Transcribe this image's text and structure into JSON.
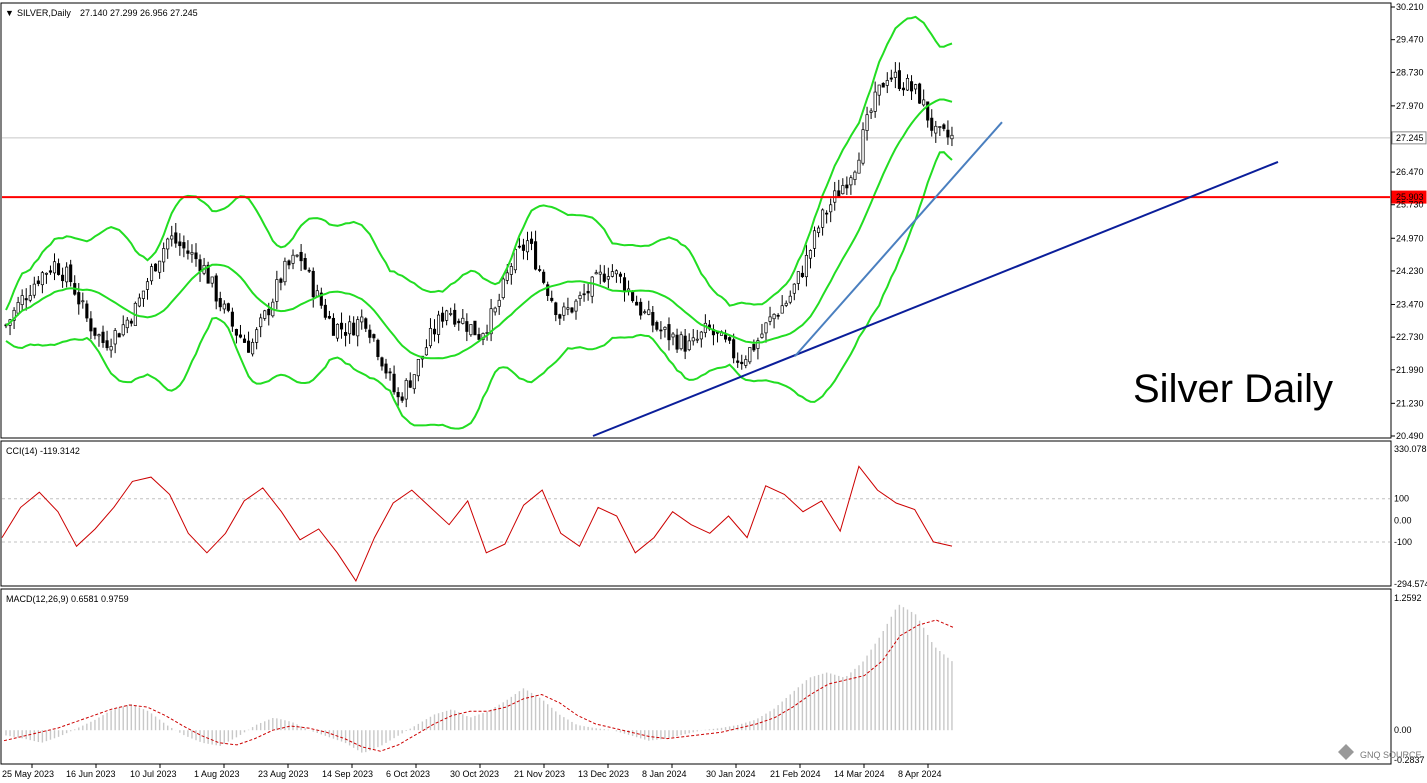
{
  "header": {
    "symbol_label": "SILVER,Daily",
    "ohlc": "27.140 27.299 26.956 27.245"
  },
  "watermark": "Silver Daily",
  "logo_text": "GNQ SOURCE",
  "colors": {
    "candle": "#000000",
    "bollinger": "#22dd22",
    "resistance": "#ff0000",
    "trend_dark": "#0b1e9a",
    "trend_light": "#4a7fbf",
    "cci": "#cc0000",
    "macd_hist": "#c8c8c8",
    "macd_signal": "#cc0000",
    "grid": "#c0c0c0"
  },
  "chart_data": [
    {
      "type": "candlestick",
      "title": "SILVER,Daily",
      "yaxis_ticks": [
        "30.210",
        "29.470",
        "28.730",
        "27.970",
        "27.245",
        "26.470",
        "25.903",
        "25.730",
        "24.970",
        "24.230",
        "23.470",
        "22.730",
        "21.990",
        "21.230",
        "20.490"
      ],
      "ylim": [
        20.49,
        30.21
      ],
      "current_price": 27.245,
      "resistance_level": 25.903,
      "x_labels": [
        "25 May 2023",
        "16 Jun 2023",
        "10 Jul 2023",
        "1 Aug 2023",
        "23 Aug 2023",
        "14 Sep 2023",
        "6 Oct 2023",
        "30 Oct 2023",
        "21 Nov 2023",
        "13 Dec 2023",
        "8 Jan 2024",
        "30 Jan 2024",
        "21 Feb 2024",
        "14 Mar 2024",
        "8 Apr 2024"
      ],
      "close_path": [
        23.0,
        23.6,
        24.1,
        24.4,
        24.0,
        23.1,
        22.6,
        22.9,
        23.4,
        24.3,
        25.0,
        24.7,
        24.4,
        23.6,
        22.9,
        22.5,
        23.3,
        24.2,
        24.6,
        23.7,
        23.0,
        22.9,
        23.2,
        22.3,
        21.3,
        21.9,
        22.7,
        23.4,
        23.1,
        22.8,
        23.3,
        24.4,
        24.9,
        24.0,
        23.2,
        23.5,
        23.9,
        24.3,
        23.9,
        23.3,
        22.9,
        22.7,
        22.5,
        22.9,
        22.6,
        22.2,
        22.6,
        23.2,
        23.6,
        24.4,
        25.4,
        26.0,
        26.6,
        27.8,
        28.7,
        28.5,
        28.2,
        27.3,
        27.245
      ],
      "indicators": [
        "Bollinger Bands",
        "Resistance line 25.903",
        "Rising trendline",
        "Steep trendline"
      ]
    },
    {
      "type": "line",
      "title": "CCI(14) -119.3142",
      "yaxis_ticks": [
        "330.078",
        "100",
        "0.00",
        "-100",
        "-294.574"
      ],
      "ylim": [
        -294.574,
        330.078
      ],
      "reference_levels": [
        100,
        -100
      ],
      "values": [
        -80,
        60,
        130,
        40,
        -120,
        -40,
        60,
        180,
        200,
        120,
        -60,
        -150,
        -60,
        90,
        150,
        40,
        -90,
        -40,
        -150,
        -280,
        -80,
        80,
        140,
        60,
        -20,
        90,
        -150,
        -110,
        70,
        140,
        -60,
        -120,
        60,
        20,
        -150,
        -80,
        40,
        -20,
        -60,
        20,
        -80,
        160,
        120,
        40,
        90,
        -50,
        250,
        140,
        80,
        50,
        -100,
        -119.3142
      ]
    },
    {
      "type": "macd",
      "title": "MACD(12,26,9) 0.6581 0.9759",
      "yaxis_ticks": [
        "1.2592",
        "0.00",
        "-0.2837"
      ],
      "ylim": [
        -0.2837,
        1.2592
      ],
      "macd": 0.6581,
      "signal": 0.9759,
      "hist_values": [
        -0.05,
        -0.08,
        -0.12,
        -0.06,
        0.02,
        0.1,
        0.2,
        0.25,
        0.18,
        0.05,
        -0.05,
        -0.12,
        -0.15,
        -0.06,
        0.05,
        0.12,
        0.08,
        0.0,
        -0.06,
        -0.12,
        -0.22,
        -0.15,
        -0.05,
        0.05,
        0.15,
        0.2,
        0.12,
        0.18,
        0.28,
        0.4,
        0.3,
        0.15,
        0.05,
        0.02,
        0.0,
        -0.05,
        -0.1,
        -0.08,
        -0.04,
        0.0,
        0.02,
        0.05,
        0.1,
        0.2,
        0.35,
        0.5,
        0.55,
        0.5,
        0.65,
        0.9,
        1.2,
        1.1,
        0.8,
        0.6581
      ],
      "signal_values": [
        -0.1,
        -0.06,
        -0.02,
        0.02,
        0.08,
        0.14,
        0.2,
        0.24,
        0.22,
        0.14,
        0.04,
        -0.05,
        -0.12,
        -0.14,
        -0.08,
        0.0,
        0.04,
        0.02,
        -0.02,
        -0.08,
        -0.16,
        -0.2,
        -0.14,
        -0.04,
        0.06,
        0.14,
        0.18,
        0.18,
        0.22,
        0.3,
        0.34,
        0.26,
        0.14,
        0.06,
        0.02,
        -0.02,
        -0.06,
        -0.08,
        -0.06,
        -0.04,
        -0.02,
        0.02,
        0.06,
        0.12,
        0.22,
        0.34,
        0.44,
        0.48,
        0.52,
        0.66,
        0.9,
        1.0,
        1.05,
        0.9759
      ]
    }
  ]
}
